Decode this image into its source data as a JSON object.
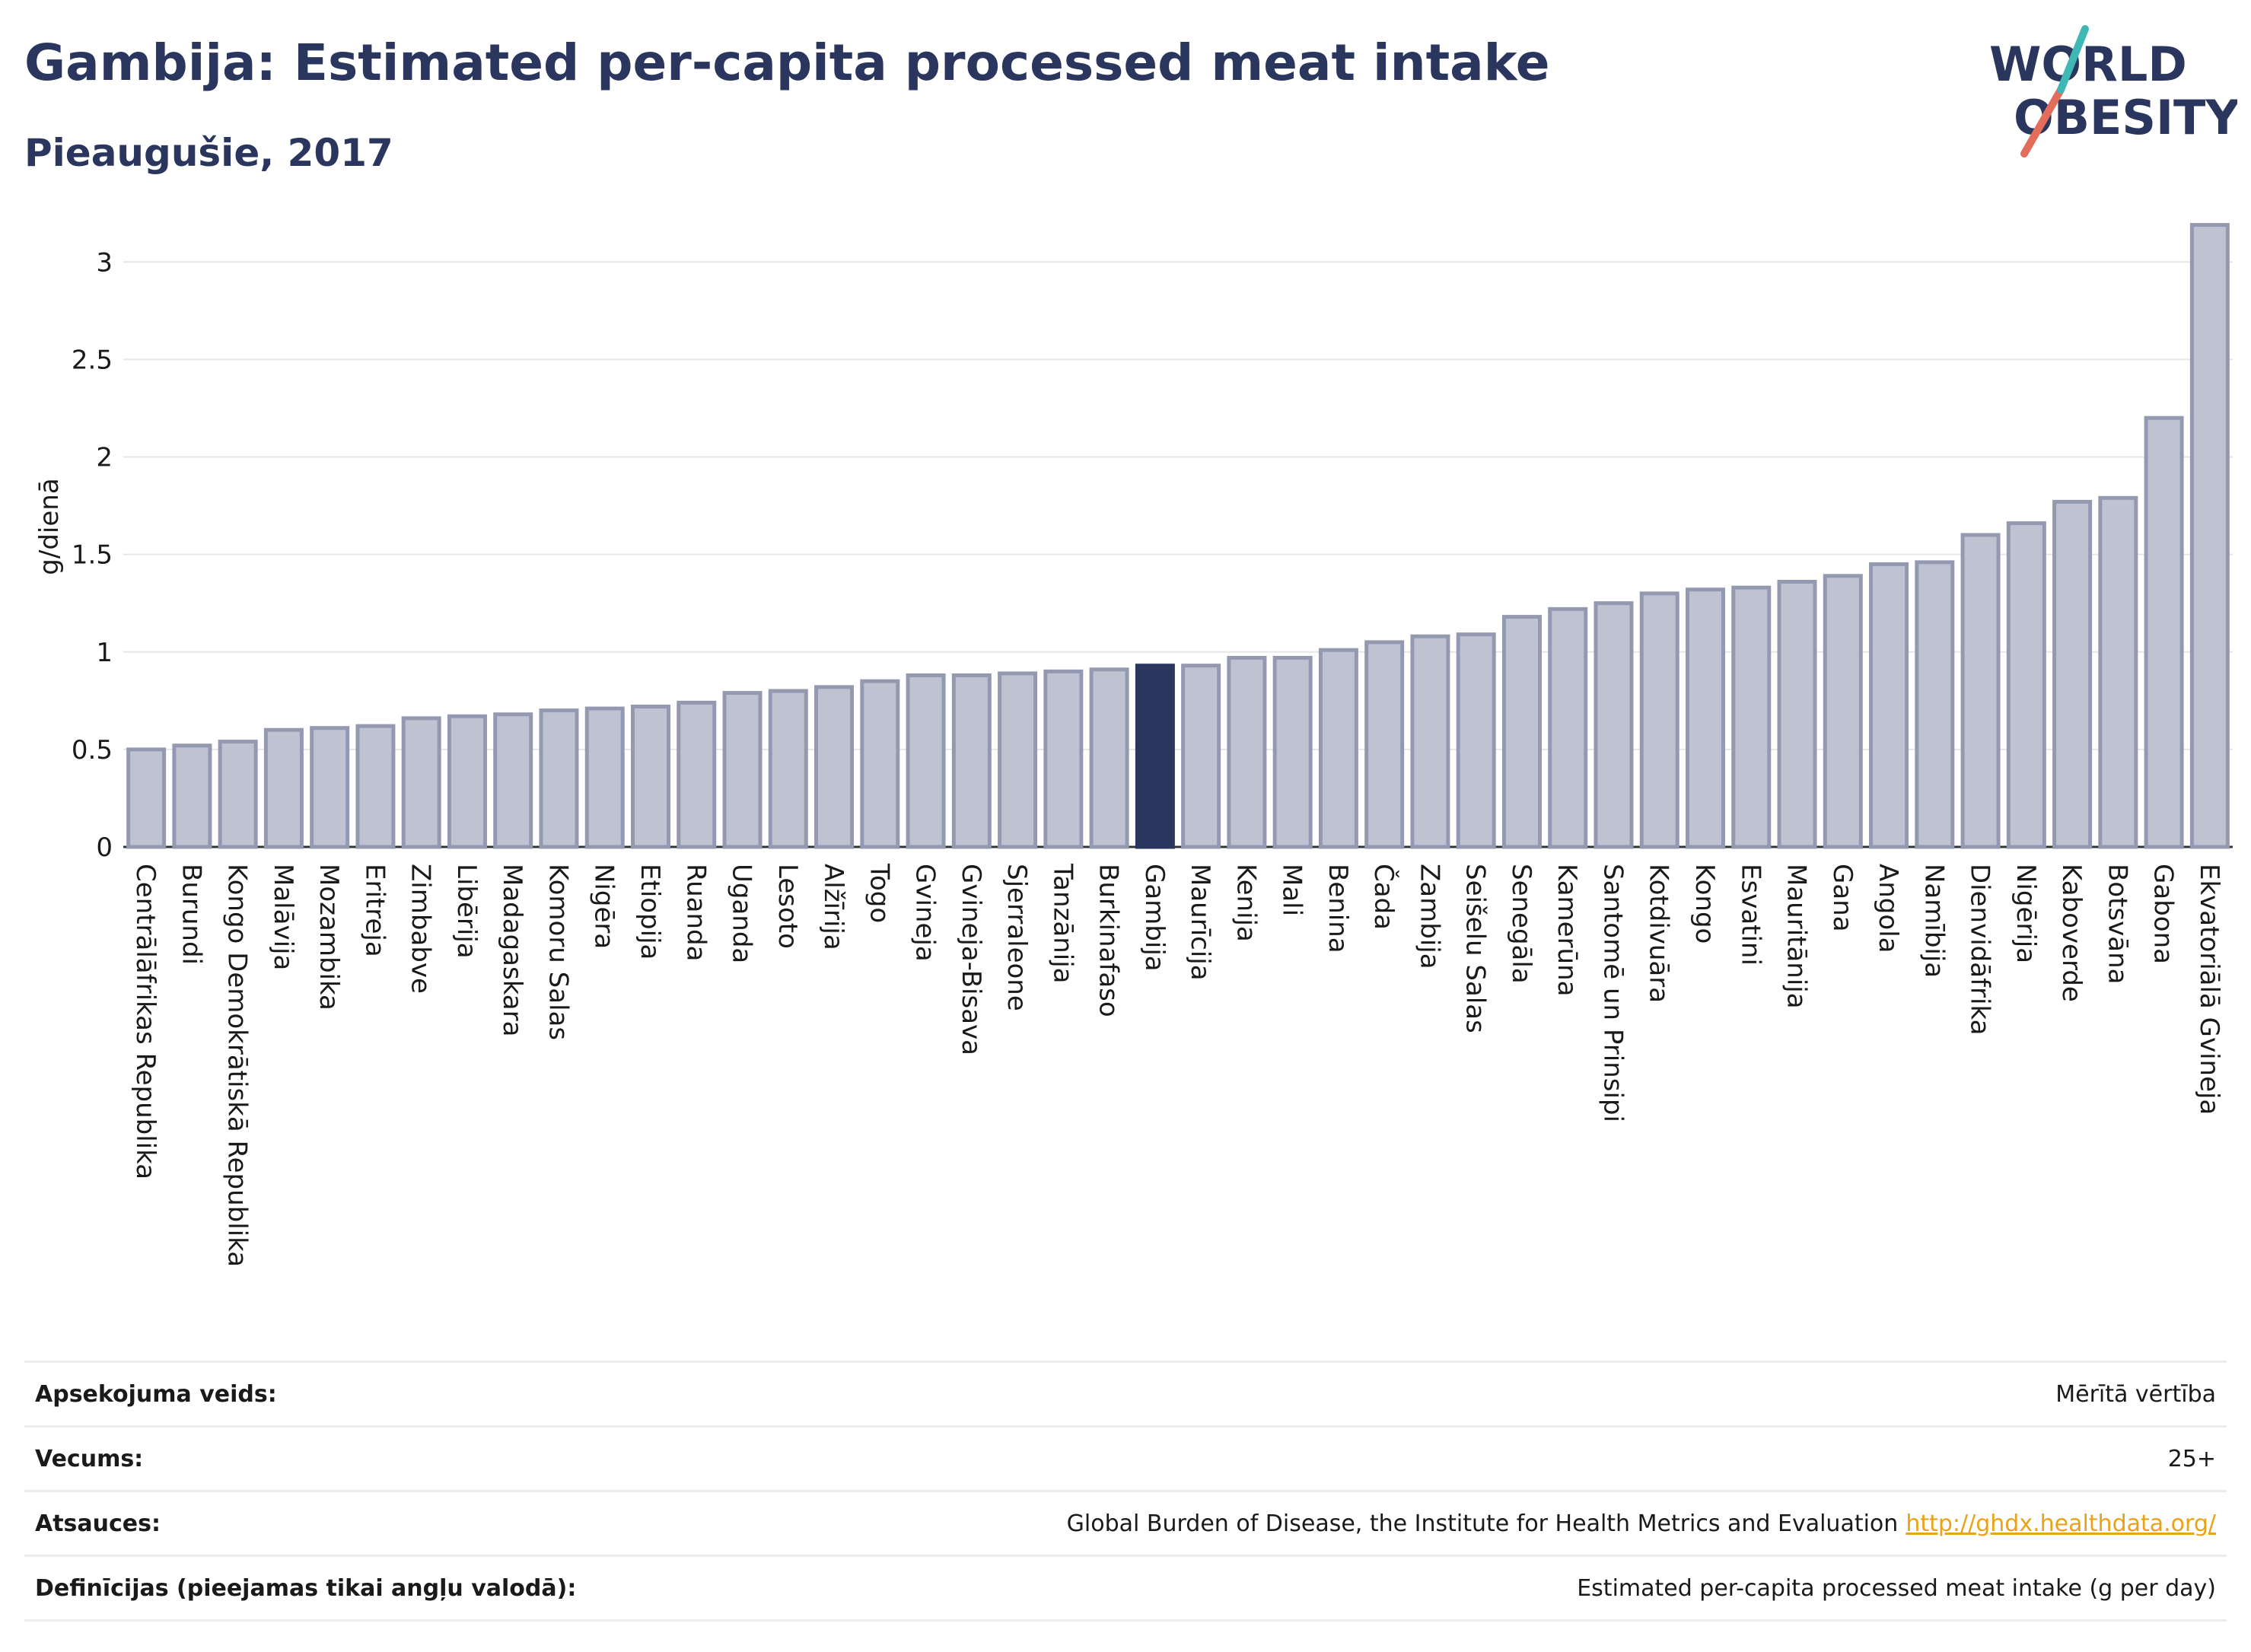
{
  "header": {
    "title": "Gambija: Estimated per-capita processed meat intake",
    "subtitle": "Pieaugušie, 2017"
  },
  "logo": {
    "line1": "WORLD",
    "line2": "OBESITY",
    "accent_teal": "#3fb7b5",
    "accent_coral": "#e36d5b"
  },
  "colors": {
    "bar_fill": "#bfc3d1",
    "bar_stroke": "#9499b2",
    "highlight_fill": "#2b365e",
    "text_dark": "#2b365e"
  },
  "chart_data": {
    "type": "bar",
    "ylabel": "g/dienā",
    "ylim": [
      0,
      3.2
    ],
    "yticks": [
      0,
      0.5,
      1,
      1.5,
      2,
      2.5,
      3
    ],
    "ytick_labels": [
      "0",
      "0.5",
      "1",
      "1.5",
      "2",
      "2.5",
      "3"
    ],
    "grid": true,
    "highlight": "Gambija",
    "categories": [
      "Centrālāfrikas Republika",
      "Burundi",
      "Kongo Demokrātiskā Republika",
      "Malāvija",
      "Mozambika",
      "Eritreja",
      "Zimbabve",
      "Libērija",
      "Madagaskara",
      "Komoru Salas",
      "Nigēra",
      "Etiopija",
      "Ruanda",
      "Uganda",
      "Lesoto",
      "Alžīrija",
      "Togo",
      "Gvineja",
      "Gvineja-Bisava",
      "Sjerraleone",
      "Tanzānija",
      "Burkinafaso",
      "Gambija",
      "Maurīcija",
      "Kenija",
      "Mali",
      "Benina",
      "Čada",
      "Zambija",
      "Seišelu Salas",
      "Senegāla",
      "Kamerūna",
      "Santomē un Prinsipi",
      "Kotdivuāra",
      "Kongo",
      "Esvatini",
      "Mauritānija",
      "Gana",
      "Angola",
      "Namībija",
      "Dienvidāfrika",
      "Nigērija",
      "Kaboverde",
      "Botsvāna",
      "Gabona",
      "Ekvatoriālā Gvineja"
    ],
    "values": [
      0.5,
      0.52,
      0.54,
      0.6,
      0.61,
      0.62,
      0.66,
      0.67,
      0.68,
      0.7,
      0.71,
      0.72,
      0.74,
      0.79,
      0.8,
      0.82,
      0.85,
      0.88,
      0.88,
      0.89,
      0.9,
      0.91,
      0.93,
      0.93,
      0.97,
      0.97,
      1.01,
      1.05,
      1.08,
      1.09,
      1.18,
      1.22,
      1.25,
      1.3,
      1.32,
      1.33,
      1.36,
      1.39,
      1.45,
      1.46,
      1.6,
      1.66,
      1.77,
      1.79,
      2.2,
      3.19
    ]
  },
  "meta": {
    "rows": [
      {
        "label": "Apsekojuma veids:",
        "value": "Mērītā vērtība"
      },
      {
        "label": "Vecums:",
        "value": "25+"
      },
      {
        "label": "Atsauces:",
        "value": "Global Burden of Disease, the Institute for Health Metrics and Evaluation",
        "link": "http://ghdx.healthdata.org/"
      },
      {
        "label": "Definīcijas (pieejamas tikai angļu valodā):",
        "value": "Estimated per-capita processed meat intake (g per day)"
      }
    ]
  }
}
